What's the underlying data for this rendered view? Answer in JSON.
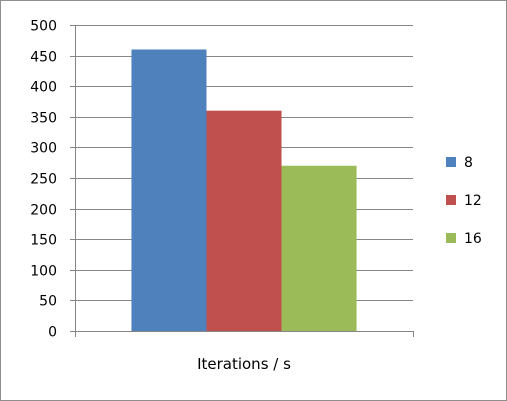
{
  "chart_data": {
    "type": "bar",
    "xlabel": "Iterations / s",
    "ylabel": "",
    "ylim": [
      0,
      500
    ],
    "yticks": [
      0,
      50,
      100,
      150,
      200,
      250,
      300,
      350,
      400,
      450,
      500
    ],
    "grid": true,
    "legend_position": "right",
    "categories": [
      "Iterations / s"
    ],
    "series": [
      {
        "name": "8",
        "values": [
          460
        ],
        "color": "#4f81bd"
      },
      {
        "name": "12",
        "values": [
          360
        ],
        "color": "#c0504d"
      },
      {
        "name": "16",
        "values": [
          270
        ],
        "color": "#9bbb59"
      }
    ]
  }
}
